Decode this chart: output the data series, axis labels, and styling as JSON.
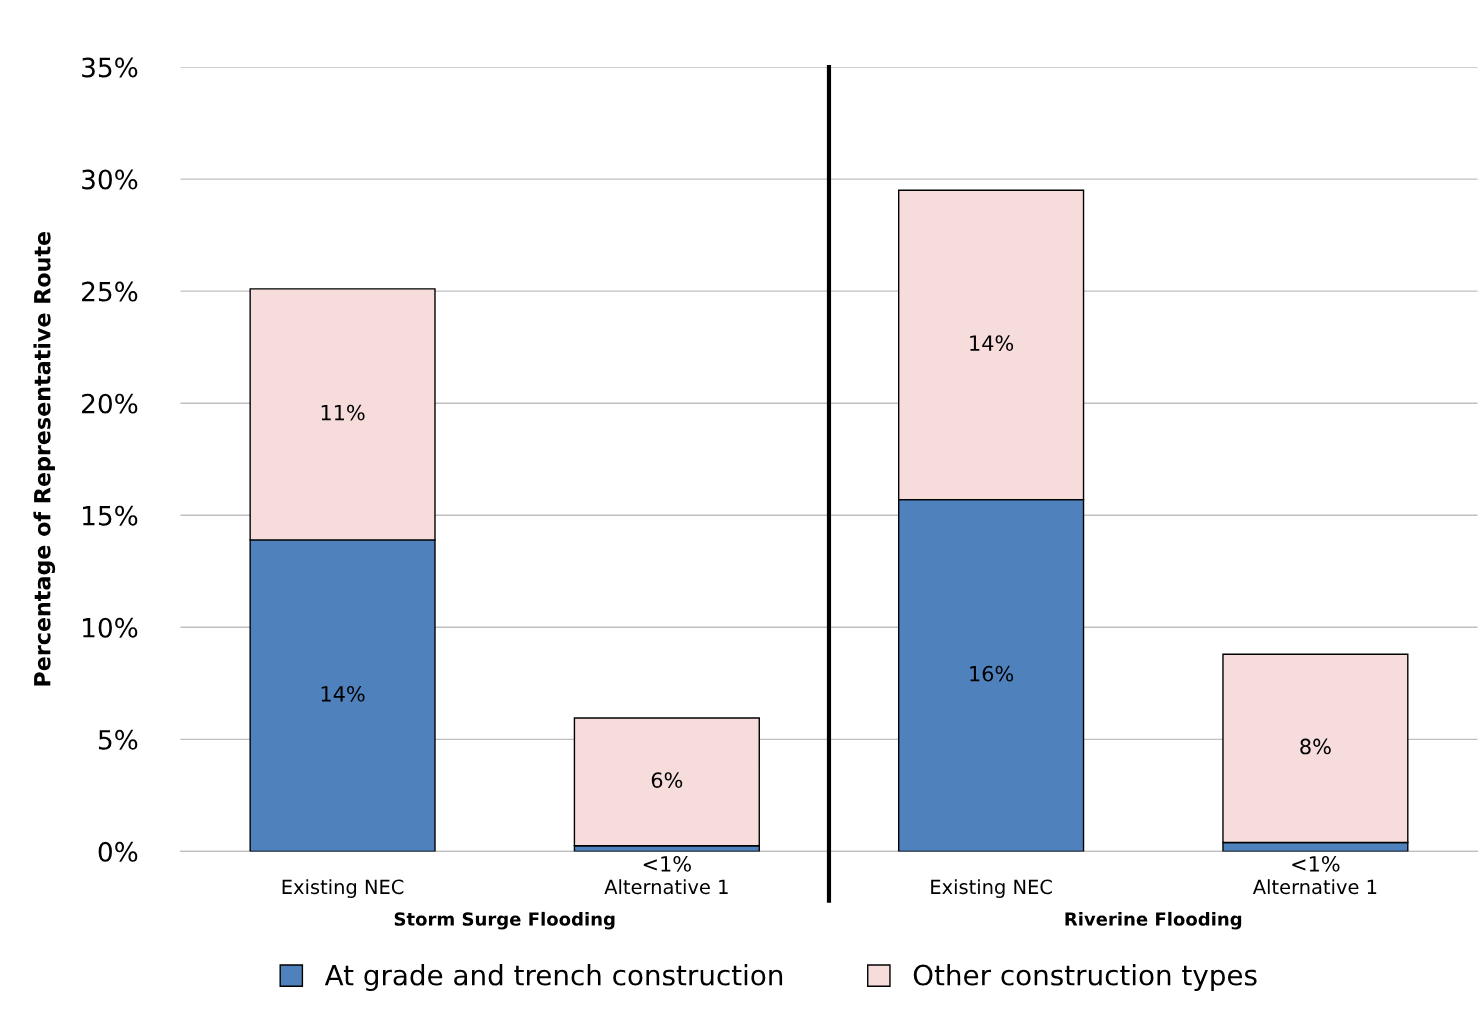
{
  "chart_data": [
    {
      "type": "bar",
      "stacked": true,
      "ylabel": "Percentage of Representative Route",
      "xlabel": "Storm Surge Flooding",
      "categories": [
        "Existing NEC",
        "Alternative 1"
      ],
      "series": [
        {
          "name": "At grade and trench construction",
          "color": "#4f81bd",
          "values": [
            13.9,
            0.25
          ],
          "value_labels": [
            "14%",
            "<1%"
          ]
        },
        {
          "name": "Other construction types",
          "color": "#f7dcdc",
          "values": [
            11.2,
            5.7
          ],
          "value_labels": [
            "11%",
            "6%"
          ]
        }
      ],
      "ylim": [
        0,
        35
      ],
      "yticks": [
        {
          "value": 0,
          "label": "0%"
        },
        {
          "value": 5,
          "label": "5%"
        },
        {
          "value": 10,
          "label": "10%"
        },
        {
          "value": 15,
          "label": "15%"
        },
        {
          "value": 20,
          "label": "20%"
        },
        {
          "value": 25,
          "label": "25%"
        },
        {
          "value": 30,
          "label": "30%"
        },
        {
          "value": 35,
          "label": "35%"
        }
      ],
      "grid": "y",
      "legend": "bottom"
    },
    {
      "type": "bar",
      "stacked": true,
      "xlabel": "Riverine Flooding",
      "categories": [
        "Existing NEC",
        "Alternative 1"
      ],
      "series": [
        {
          "color": "#4f81bd",
          "values": [
            15.7,
            0.4
          ],
          "value_labels": [
            "16%",
            "<1%"
          ]
        },
        {
          "color": "#f7dcdc",
          "values": [
            13.8,
            8.4
          ],
          "value_labels": [
            "14%",
            "8%"
          ]
        }
      ],
      "ylim": [
        0,
        35
      ],
      "yticks": [
        0,
        5,
        10,
        15,
        20,
        25,
        30,
        35
      ],
      "grid": "y",
      "tick_labels": "x"
    }
  ]
}
